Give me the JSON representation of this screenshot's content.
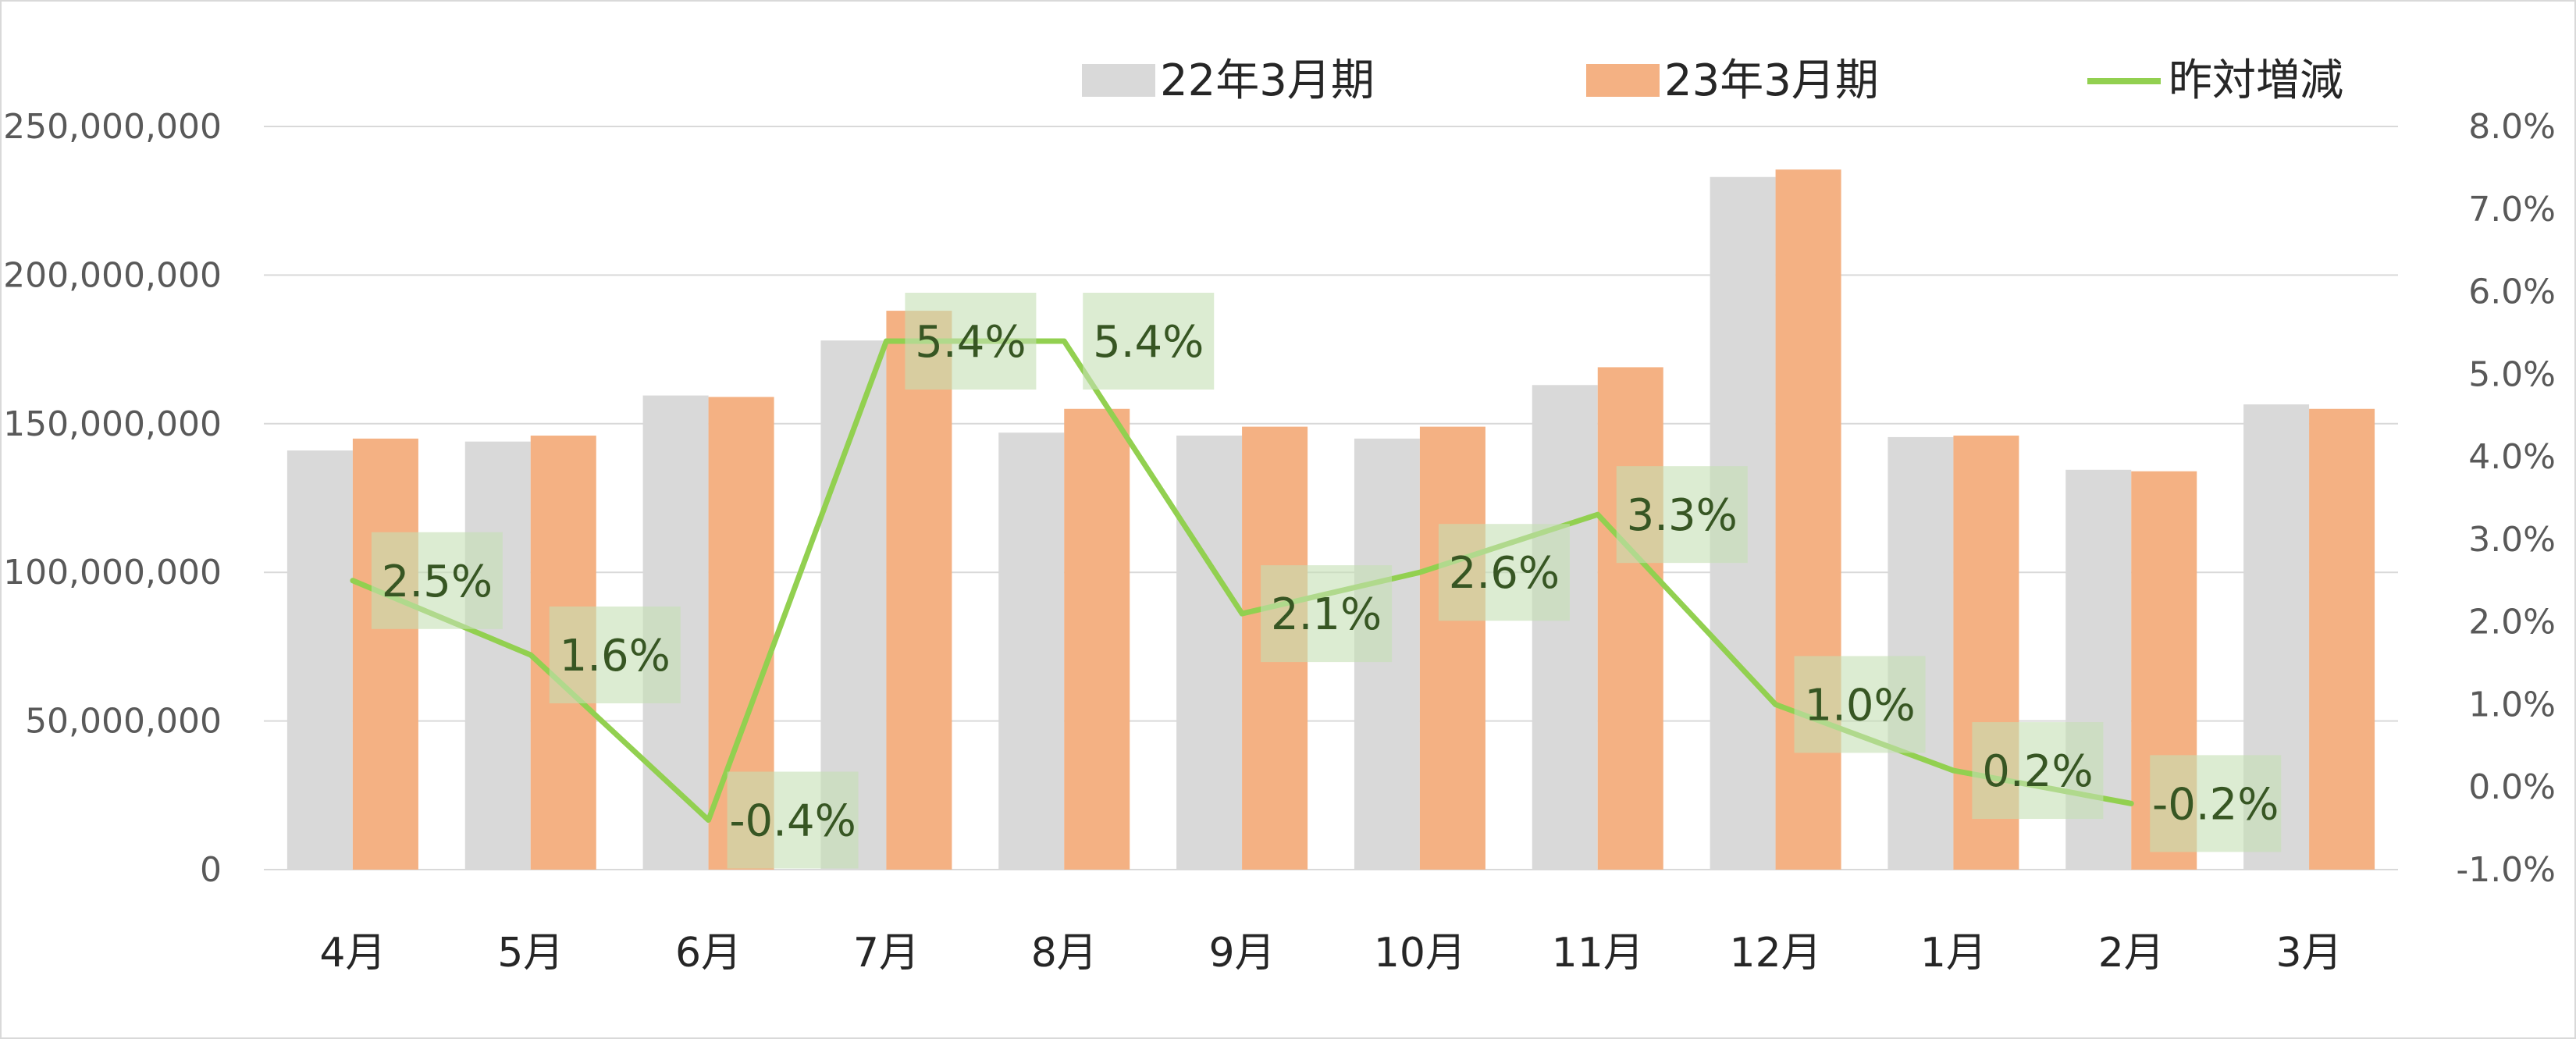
{
  "chart_data": {
    "type": "bar",
    "categories": [
      "4月",
      "5月",
      "6月",
      "7月",
      "8月",
      "9月",
      "10月",
      "11月",
      "12月",
      "1月",
      "2月",
      "3月"
    ],
    "series": [
      {
        "name": "22年3月期",
        "type": "bar",
        "axis": "left",
        "color": "#d9d9d9",
        "values": [
          141000000,
          144000000,
          159500000,
          178000000,
          147000000,
          146000000,
          145000000,
          163000000,
          233000000,
          145500000,
          134500000,
          156500000
        ]
      },
      {
        "name": "23年3月期",
        "type": "bar",
        "axis": "left",
        "color": "#f4b183",
        "values": [
          145000000,
          146000000,
          159000000,
          188000000,
          155000000,
          149000000,
          149000000,
          169000000,
          235500000,
          146000000,
          134000000,
          155000000
        ]
      },
      {
        "name": "昨対増減",
        "type": "line",
        "axis": "right",
        "color": "#92d050",
        "values": [
          2.5,
          1.6,
          -0.4,
          5.4,
          5.4,
          2.1,
          2.6,
          3.3,
          1.0,
          0.2,
          -0.2,
          null
        ],
        "labels": [
          "2.5%",
          "1.6%",
          "-0.4%",
          "5.4%",
          "5.4%",
          "2.1%",
          "2.6%",
          "3.3%",
          "1.0%",
          "0.2%",
          "-0.2%",
          ""
        ]
      }
    ],
    "y_left": {
      "ylim": [
        0,
        250000000
      ],
      "ticks": [
        0,
        50000000,
        100000000,
        150000000,
        200000000,
        250000000
      ],
      "tick_labels": [
        "0",
        "50,000,000",
        "100,000,000",
        "150,000,000",
        "200,000,000",
        "250,000,000"
      ]
    },
    "y_right": {
      "ylim": [
        -1.0,
        8.0
      ],
      "ticks": [
        -1.0,
        0.0,
        1.0,
        2.0,
        3.0,
        4.0,
        5.0,
        6.0,
        7.0,
        8.0
      ],
      "tick_labels": [
        "-1.0%",
        "0.0%",
        "1.0%",
        "2.0%",
        "3.0%",
        "4.0%",
        "5.0%",
        "6.0%",
        "7.0%",
        "8.0%"
      ]
    },
    "grid": true,
    "legend_position": "top",
    "label_box_color": "#c5e0b4"
  }
}
